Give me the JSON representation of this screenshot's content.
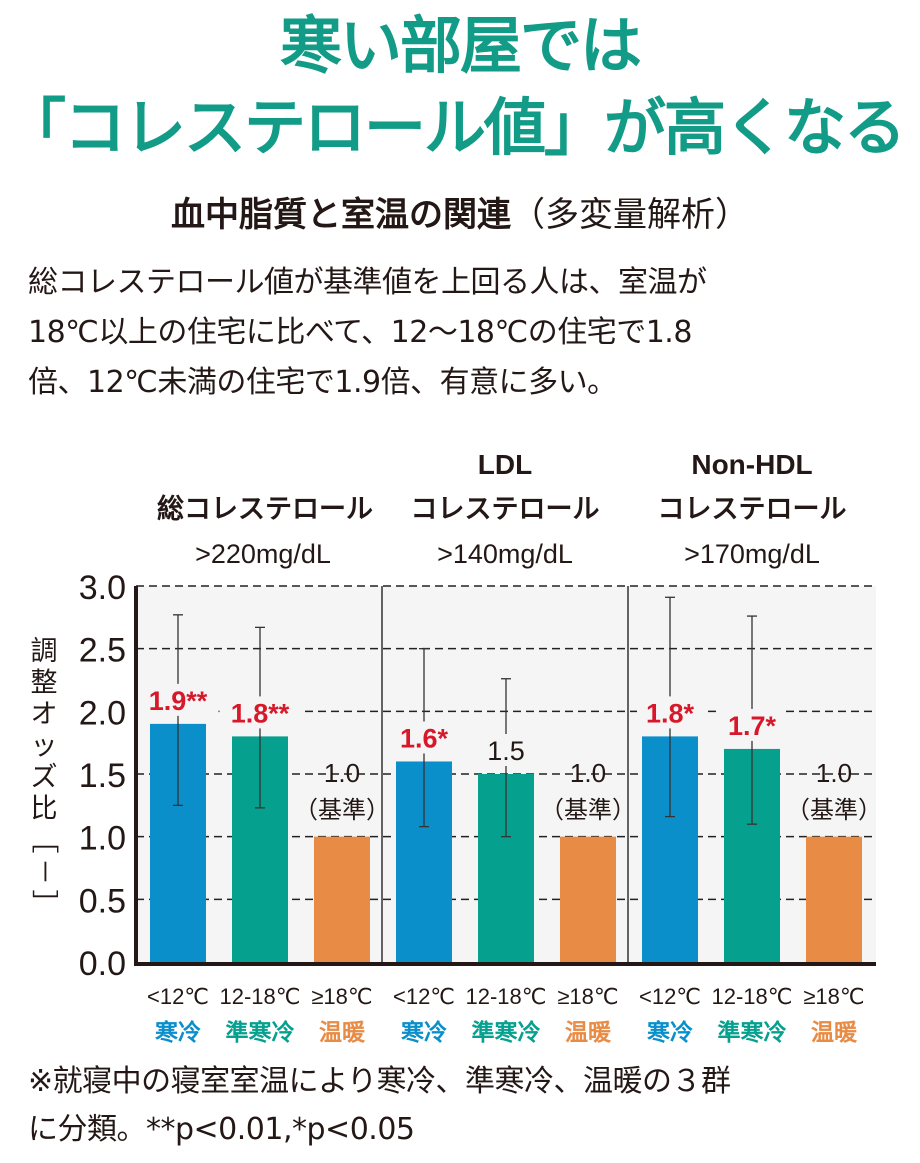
{
  "headline": {
    "line1": "寒い部屋では",
    "line2": "「コレステロール値」が高くなる"
  },
  "subtitle": {
    "main": "血中脂質と室温の関連",
    "paren": "（多変量解析）"
  },
  "description": [
    "総コレステロール値が基準値を上回る人は、室温が",
    "18℃以上の住宅に比べて、12～18℃の住宅で1.8",
    "倍、12℃未満の住宅で1.9倍、有意に多い。"
  ],
  "footnote": [
    "※就寝中の寝室室温により寒冷、準寒冷、温暖の３群",
    "に分類。**p<0.01,*p<0.05"
  ],
  "colors": {
    "title": "#129b86",
    "cold": "#0b8fcb",
    "semi_cold": "#06a08e",
    "warm": "#e88b45",
    "significant": "#d7182a",
    "plot_bg": "#f5f5f5"
  },
  "chart_data": {
    "type": "bar",
    "ylabel": "調整オッズ比［－］",
    "ylim": [
      0,
      3.0
    ],
    "yticks": [
      "0.0",
      "0.5",
      "1.0",
      "1.5",
      "2.0",
      "2.5",
      "3.0"
    ],
    "ytick_values": [
      0,
      0.5,
      1.0,
      1.5,
      2.0,
      2.5,
      3.0
    ],
    "grid": "dashed-horizontal",
    "categories": [
      {
        "temp": "<12℃",
        "group": "寒冷",
        "color_key": "cold"
      },
      {
        "temp": "12-18℃",
        "group": "準寒冷",
        "color_key": "semi_cold"
      },
      {
        "temp": "≥18℃",
        "group": "温暖",
        "color_key": "warm"
      }
    ],
    "panels": [
      {
        "title_line1": "",
        "title_line2": "総コレステロール",
        "threshold": ">220mg/dL",
        "bars": [
          {
            "value": 1.9,
            "label": "1.9**",
            "ci_low": 1.25,
            "ci_high": 2.77,
            "significant": true
          },
          {
            "value": 1.8,
            "label": "1.8**",
            "ci_low": 1.23,
            "ci_high": 2.67,
            "significant": true
          },
          {
            "value": 1.0,
            "label": "1.0",
            "label2": "（基準）",
            "reference": true
          }
        ]
      },
      {
        "title_line1": "LDL",
        "title_line2": "コレステロール",
        "threshold": ">140mg/dL",
        "bars": [
          {
            "value": 1.6,
            "label": "1.6*",
            "ci_low": 1.08,
            "ci_high": 2.5,
            "significant": true
          },
          {
            "value": 1.5,
            "label": "1.5",
            "ci_low": 1.0,
            "ci_high": 2.26,
            "significant": false
          },
          {
            "value": 1.0,
            "label": "1.0",
            "label2": "（基準）",
            "reference": true
          }
        ]
      },
      {
        "title_line1": "Non-HDL",
        "title_line2": "コレステロール",
        "threshold": ">170mg/dL",
        "bars": [
          {
            "value": 1.8,
            "label": "1.8*",
            "ci_low": 1.16,
            "ci_high": 2.91,
            "significant": true
          },
          {
            "value": 1.7,
            "label": "1.7*",
            "ci_low": 1.1,
            "ci_high": 2.76,
            "significant": true
          },
          {
            "value": 1.0,
            "label": "1.0",
            "label2": "（基準）",
            "reference": true
          }
        ]
      }
    ]
  }
}
